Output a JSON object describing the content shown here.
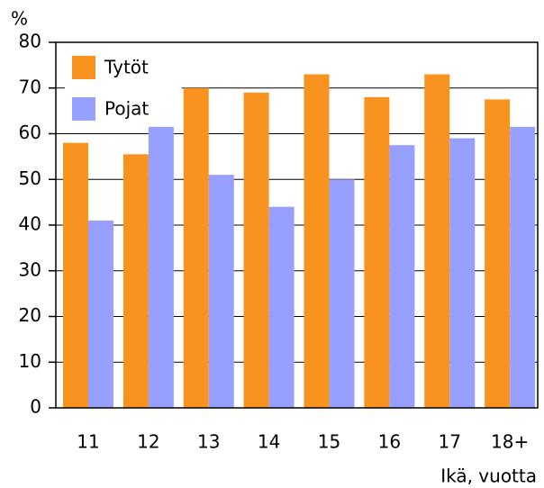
{
  "chart_data": {
    "type": "bar",
    "ylabel": "%",
    "xlabel": "Ikä, vuotta",
    "categories": [
      "11",
      "12",
      "13",
      "14",
      "15",
      "16",
      "17",
      "18+"
    ],
    "series": [
      {
        "name": "Tytöt",
        "color": "#f7931e",
        "values": [
          58,
          55.5,
          70,
          69,
          73,
          68,
          73,
          67.5
        ]
      },
      {
        "name": "Pojat",
        "color": "#97a0ff",
        "values": [
          41,
          61.5,
          51,
          44,
          50,
          57.5,
          59,
          61.5
        ]
      }
    ],
    "ylim": [
      0,
      80
    ],
    "yticks": [
      0,
      10,
      20,
      30,
      40,
      50,
      60,
      70,
      80
    ],
    "grid": true,
    "legend": "upper left"
  }
}
